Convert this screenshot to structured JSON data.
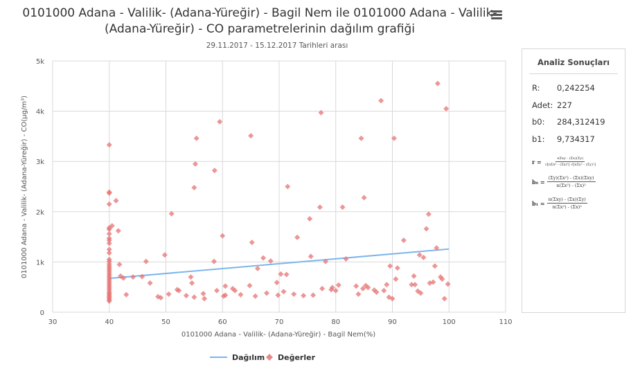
{
  "title_line1": "0101000 Adana - Valilik- (Adana-Yüreğir) - Bagil Nem ile 0101000 Adana - Valilik-",
  "title_line2": "(Adana-Yüreğir) - CO parametrelerinin dağılım grafiği",
  "subtitle": "29.11.2017 - 15.12.2017 Tarihleri arası",
  "menu_icon": "hamburger-menu-icon",
  "chart_data": {
    "type": "scatter",
    "xlabel": "0101000 Adana - Valilik- (Adana-Yüreğir) - Bagil Nem(%)",
    "ylabel": "0101000 Adana - Valilik- (Adana-Yüreğir) - CO(µg/m³)",
    "xlim": [
      30,
      110
    ],
    "ylim": [
      0,
      5000
    ],
    "x_ticks": [
      "30",
      "40",
      "50",
      "60",
      "70",
      "80",
      "90",
      "100",
      "110"
    ],
    "y_ticks": [
      "0",
      "1k",
      "2k",
      "3k",
      "4k",
      "5k"
    ],
    "grid": true,
    "legend_position": "bottom-center",
    "legend": [
      {
        "name": "Dağılım",
        "type": "line",
        "color": "#7cb5ec"
      },
      {
        "name": "Değerler",
        "type": "diamond",
        "color": "#e57373"
      }
    ],
    "regression_line": {
      "x": [
        40,
        100
      ],
      "y": [
        673.6,
        1257.7
      ]
    },
    "points": [
      [
        40,
        3330
      ],
      [
        40,
        2390
      ],
      [
        40,
        2370
      ],
      [
        40,
        2150
      ],
      [
        40,
        1680
      ],
      [
        40,
        1650
      ],
      [
        40,
        1560
      ],
      [
        40,
        1470
      ],
      [
        40,
        1430
      ],
      [
        40,
        1370
      ],
      [
        40,
        1250
      ],
      [
        40,
        1180
      ],
      [
        40,
        1050
      ],
      [
        40,
        1010
      ],
      [
        40,
        960
      ],
      [
        40,
        920
      ],
      [
        40,
        880
      ],
      [
        40,
        840
      ],
      [
        40,
        800
      ],
      [
        40,
        760
      ],
      [
        40,
        720
      ],
      [
        40,
        680
      ],
      [
        40,
        640
      ],
      [
        40,
        600
      ],
      [
        40,
        560
      ],
      [
        40,
        520
      ],
      [
        40,
        480
      ],
      [
        40,
        440
      ],
      [
        40,
        400
      ],
      [
        40,
        370
      ],
      [
        40,
        340
      ],
      [
        40,
        310
      ],
      [
        40,
        280
      ],
      [
        40,
        250
      ],
      [
        40,
        220
      ],
      [
        40.5,
        1720
      ],
      [
        41.2,
        2220
      ],
      [
        41.6,
        1620
      ],
      [
        41.8,
        950
      ],
      [
        42,
        720
      ],
      [
        42.5,
        680
      ],
      [
        43,
        350
      ],
      [
        44.2,
        700
      ],
      [
        45.8,
        710
      ],
      [
        46.5,
        1010
      ],
      [
        47.2,
        580
      ],
      [
        48.6,
        310
      ],
      [
        49.1,
        290
      ],
      [
        49.8,
        1140
      ],
      [
        50.5,
        360
      ],
      [
        51,
        1960
      ],
      [
        52,
        450
      ],
      [
        52.3,
        430
      ],
      [
        53.6,
        330
      ],
      [
        54.4,
        700
      ],
      [
        54.6,
        580
      ],
      [
        55,
        300
      ],
      [
        55,
        2480
      ],
      [
        55.2,
        2950
      ],
      [
        55.4,
        3460
      ],
      [
        56.6,
        370
      ],
      [
        56.8,
        270
      ],
      [
        58.5,
        1010
      ],
      [
        58.6,
        2820
      ],
      [
        59,
        430
      ],
      [
        59.5,
        3790
      ],
      [
        60,
        1520
      ],
      [
        60.2,
        320
      ],
      [
        60.5,
        340
      ],
      [
        60.5,
        520
      ],
      [
        61.8,
        470
      ],
      [
        62.2,
        430
      ],
      [
        63.2,
        350
      ],
      [
        64.8,
        530
      ],
      [
        65,
        3510
      ],
      [
        65.2,
        1390
      ],
      [
        65.8,
        320
      ],
      [
        66.2,
        870
      ],
      [
        67.2,
        1080
      ],
      [
        67.8,
        380
      ],
      [
        68.5,
        1020
      ],
      [
        69.6,
        590
      ],
      [
        69.8,
        340
      ],
      [
        70.3,
        760
      ],
      [
        70.8,
        410
      ],
      [
        71.3,
        750
      ],
      [
        71.5,
        2500
      ],
      [
        72.6,
        360
      ],
      [
        73.2,
        1490
      ],
      [
        74.3,
        330
      ],
      [
        75.4,
        1860
      ],
      [
        75.6,
        1110
      ],
      [
        76,
        340
      ],
      [
        77.2,
        2090
      ],
      [
        77.4,
        3970
      ],
      [
        77.6,
        470
      ],
      [
        78.2,
        1010
      ],
      [
        79.2,
        450
      ],
      [
        79.4,
        490
      ],
      [
        80,
        430
      ],
      [
        80.5,
        540
      ],
      [
        81.2,
        2090
      ],
      [
        81.8,
        1060
      ],
      [
        83.6,
        520
      ],
      [
        84,
        360
      ],
      [
        84.5,
        3460
      ],
      [
        84.8,
        470
      ],
      [
        85,
        2280
      ],
      [
        85.3,
        530
      ],
      [
        85.7,
        490
      ],
      [
        86.8,
        440
      ],
      [
        87.2,
        400
      ],
      [
        88,
        4210
      ],
      [
        88.5,
        430
      ],
      [
        89,
        550
      ],
      [
        89.4,
        300
      ],
      [
        89.6,
        920
      ],
      [
        90,
        270
      ],
      [
        90.3,
        3460
      ],
      [
        90.6,
        660
      ],
      [
        90.9,
        880
      ],
      [
        92,
        1430
      ],
      [
        93.4,
        550
      ],
      [
        93.8,
        720
      ],
      [
        94,
        550
      ],
      [
        94.5,
        420
      ],
      [
        94.8,
        1140
      ],
      [
        95,
        380
      ],
      [
        95.5,
        1090
      ],
      [
        96,
        1660
      ],
      [
        96.4,
        1950
      ],
      [
        96.6,
        580
      ],
      [
        97.2,
        600
      ],
      [
        97.5,
        920
      ],
      [
        97.8,
        1280
      ],
      [
        98,
        4550
      ],
      [
        98.5,
        700
      ],
      [
        98.8,
        660
      ],
      [
        99.2,
        270
      ],
      [
        99.5,
        4050
      ],
      [
        99.8,
        560
      ]
    ]
  },
  "panel": {
    "title": "Analiz Sonuçları",
    "stats": [
      {
        "key": "R:",
        "value": "0,242254"
      },
      {
        "key": "Adet:",
        "value": "227"
      },
      {
        "key": "b0:",
        "value": "284,312419"
      },
      {
        "key": "b1:",
        "value": "9,734317"
      }
    ],
    "formula_r": {
      "lhs": "r =",
      "num": "nΣxy - (Σx)(Σy)",
      "den": "√[nΣx² - (Σx)²] √[nΣy² - (Σy)²]"
    },
    "formula_b0": {
      "lhs": "b₀ =",
      "num": "(Σy)(Σx²) - (Σx)(Σxy)",
      "den": "n(Σx²) - (Σx)²"
    },
    "formula_b1": {
      "lhs": "b₁ =",
      "num": "n(Σxy) - (Σx)(Σy)",
      "den": "n(Σx²) - (Σx)²"
    }
  }
}
